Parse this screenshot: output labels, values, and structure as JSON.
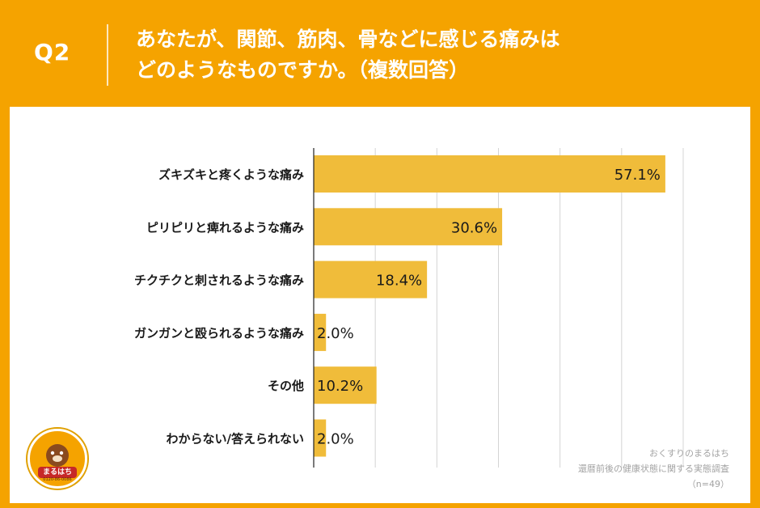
{
  "header": {
    "q_label": "Q2",
    "question_line1": "あなたが、関節、筋肉、骨などに感じる痛みは",
    "question_line2": "どのようなものですか。（複数回答）"
  },
  "chart_data": {
    "type": "bar",
    "orientation": "horizontal",
    "categories": [
      "ズキズキと疼くような痛み",
      "ピリピリと痺れるような痛み",
      "チクチクと刺されるような痛み",
      "ガンガンと殴られるような痛み",
      "その他",
      "わからない/答えられない"
    ],
    "values": [
      57.1,
      30.6,
      18.4,
      2.0,
      10.2,
      2.0
    ],
    "value_labels": [
      "57.1%",
      "30.6%",
      "18.4%",
      "2.0%",
      "10.2%",
      "2.0%"
    ],
    "xlim": [
      0,
      60
    ],
    "grid": true,
    "bar_color": "#f0bc3a",
    "grid_color": "#d4d4d4"
  },
  "footer": {
    "source_line1": "おくすりのまるはち",
    "source_line2": "還暦前後の健康状態に関する実態調査",
    "sample_size": "（n=49）"
  },
  "logo": {
    "brand_text": "まるはち",
    "phone": "0120-86-0086"
  },
  "colors": {
    "frame": "#f5a300",
    "panel": "#ffffff"
  }
}
